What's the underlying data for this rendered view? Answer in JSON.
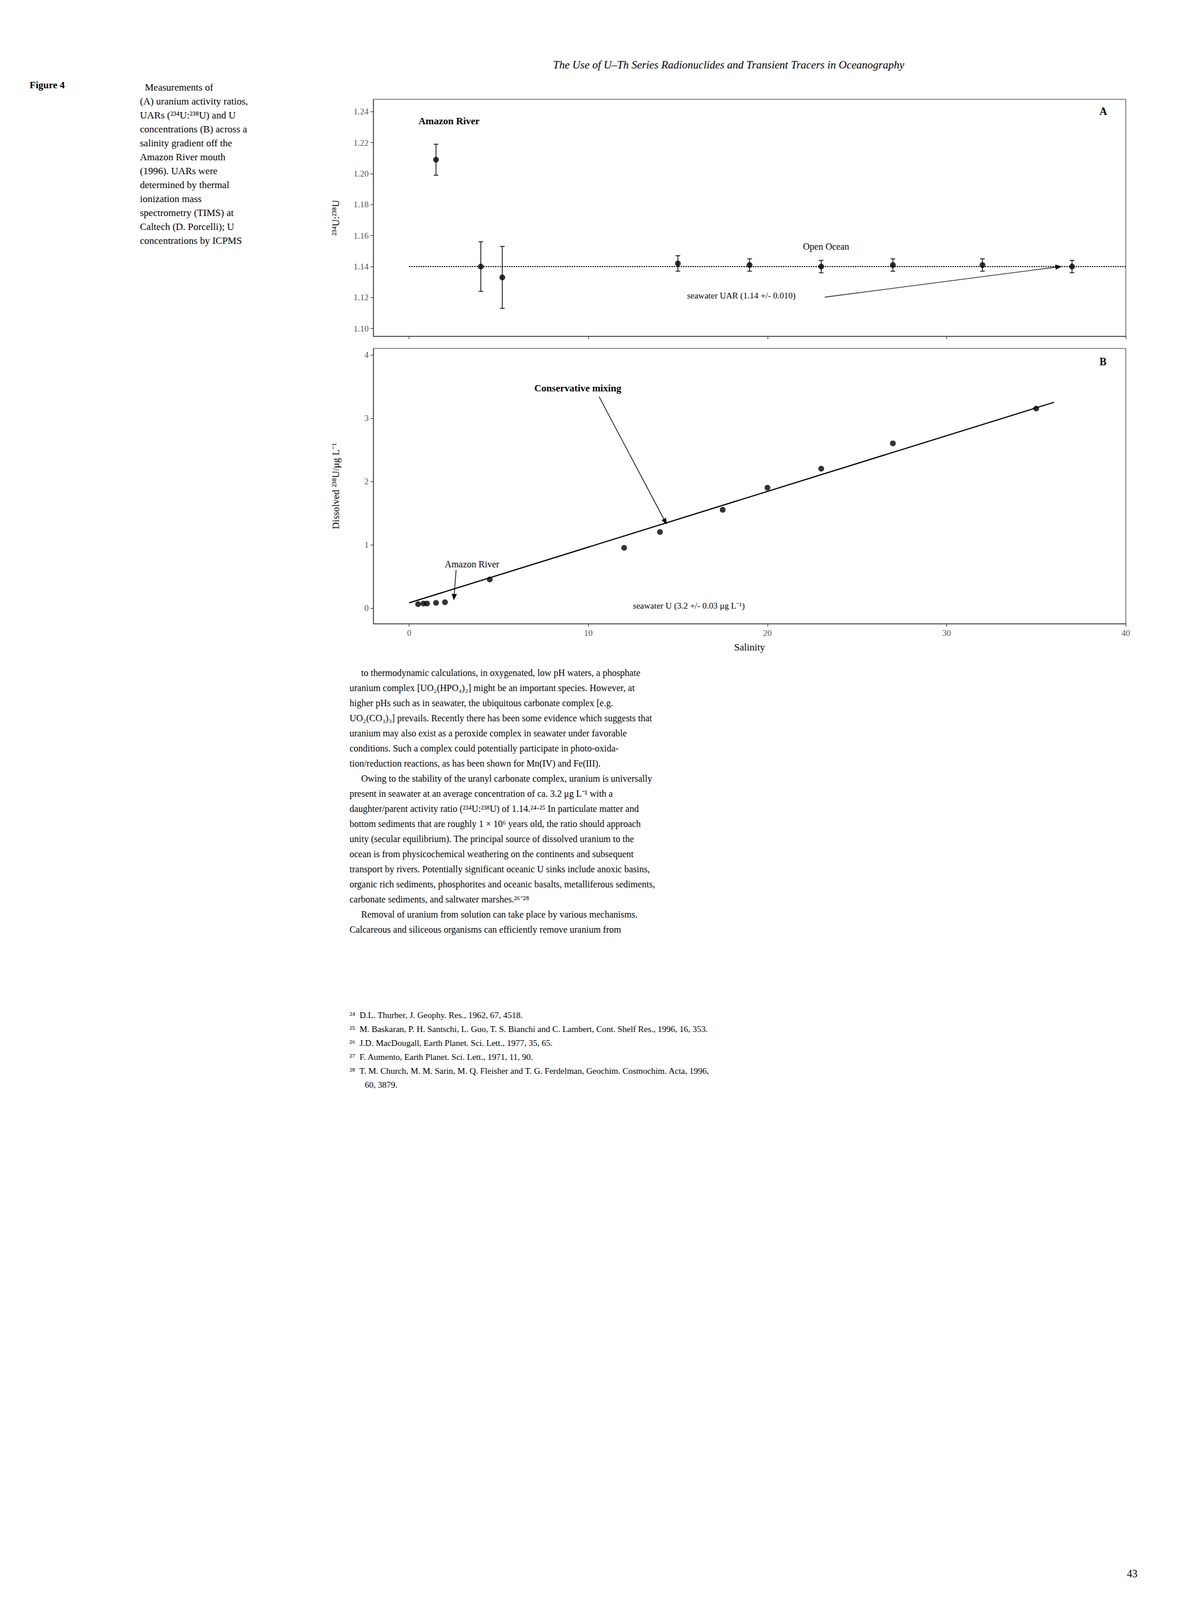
{
  "title": "The Use of U–Th Series Radionuclides and Transient Tracers in Oceanography",
  "page_number": "43",
  "caption_bold": "Figure 4",
  "caption": "  Measurements of\n(A) uranium activity ratios,\nUARs (²³⁴U:²³⁸U) and U\nconcentrations (B) across a\nsalinity gradient off the\nAmazon River mouth\n(1996). UARs were\ndetermined by thermal\nionization mass\nspectrometry (TIMS) at\nCaltech (D. Porcelli); U\nconcentrations by ICPMS",
  "body_text": [
    "     to thermodynamic calculations, in oxygenated, low pH waters, a phosphate",
    "uranium complex [UO₂(HPO₄)₂] might be an important species. However, at",
    "higher pHs such as in seawater, the ubiquitous carbonate complex [e.g.",
    "UO₂(CO₃)₃] prevails. Recently there has been some evidence which suggests that",
    "uranium may also exist as a peroxide complex in seawater under favorable",
    "conditions. Such a complex could potentially participate in photo-oxida-",
    "tion/reduction reactions, as has been shown for Mn(IV) and Fe(III).",
    "     Owing to the stability of the uranyl carbonate complex, uranium is universally",
    "present in seawater at an average concentration of ca. 3.2 μg L⁻¹ with a",
    "daughter/parent activity ratio (²³⁴U:²³⁸U) of 1.14.²⁴⋅²⁵ In particulate matter and",
    "bottom sediments that are roughly 1 × 10⁶ years old, the ratio should approach",
    "unity (secular equilibrium). The principal source of dissolved uranium to the",
    "ocean is from physicochemical weathering on the continents and subsequent",
    "transport by rivers. Potentially significant oceanic U sinks include anoxic basins,",
    "organic rich sediments, phosphorites and oceanic basalts, metalliferous sediments,",
    "carbonate sediments, and saltwater marshes.²⁶⁻²⁸",
    "     Removal of uranium from solution can take place by various mechanisms.",
    "Calcareous and siliceous organisms can efficiently remove uranium from"
  ],
  "footnotes": [
    "²⁴  D.L. Thurber, J. Geophy. Res., 1962, 67, 4518.",
    "²⁵  M. Baskaran, P. H. Santschi, L. Guo, T. S. Bianchi and C. Lambert, Cont. Shelf Res., 1996, 16, 353.",
    "²⁶  J.D. MacDougall, Earth Planet. Sci. Lett., 1977, 35, 65.",
    "²⁷  F. Aumento, Earth Planet. Sci. Lett., 1971, 11, 90.",
    "²⁸  T. M. Church, M. M. Sarin, M. Q. Fleisher and T. G. Ferdelman, Geochim. Cosmochim. Acta, 1996,",
    "       60, 3879."
  ],
  "chart_data": [
    {
      "type": "scatter",
      "label": "A",
      "ylabel": "²³⁴U:²³⁸U",
      "xlim": [
        -2,
        40
      ],
      "ylim": [
        1.095,
        1.248
      ],
      "xticks": [
        0,
        10,
        20,
        30,
        40
      ],
      "yticks": [
        {
          "value": 1.1,
          "label": "1.10"
        },
        1.12,
        1.14,
        1.16,
        1.18,
        {
          "value": 1.2,
          "label": "1.20"
        },
        1.22,
        1.24
      ],
      "tick_labels": "y",
      "grid": false,
      "series": [
        {
          "type": "line",
          "line_style": "dotted",
          "color": "#000000",
          "x": [
            0,
            40
          ],
          "values": [
            1.14,
            1.14
          ]
        },
        {
          "type": "scatter",
          "marker": "circle",
          "color": "#000000",
          "x": [
            1.5,
            4.0,
            5.2
          ],
          "values": [
            1.209,
            1.14,
            1.133
          ],
          "error": [
            0.01,
            0.016,
            0.02
          ]
        },
        {
          "type": "scatter",
          "marker": "circle",
          "color": "#000000",
          "x": [
            15,
            19,
            23,
            27,
            32,
            37
          ],
          "values": [
            1.142,
            1.141,
            1.14,
            1.141,
            1.141,
            1.14
          ],
          "error": [
            0.005,
            0.004,
            0.004,
            0.004,
            0.004,
            0.004
          ]
        }
      ],
      "amazon_label": "Amazon River",
      "open_ocean_label": "Open Ocean",
      "seawater_label": "seawater UAR (1.14 +/- 0.010)"
    },
    {
      "type": "scatter",
      "label": "B",
      "xlabel": "Salinity",
      "ylabel": "Dissolved ²³⁸U/μg L⁻¹",
      "xlim": [
        -2,
        40
      ],
      "ylim": [
        -0.25,
        4.1
      ],
      "xticks": [
        0,
        10,
        20,
        30,
        40
      ],
      "yticks": [
        0,
        1,
        2,
        3,
        4
      ],
      "grid": false,
      "series": [
        {
          "type": "line",
          "line_style": "solid",
          "color": "#000000",
          "x": [
            0.0,
            36.0
          ],
          "values": [
            0.08,
            3.25
          ]
        },
        {
          "type": "scatter",
          "marker": "circle",
          "color": "#000000",
          "x": [
            0.5,
            0.8,
            1.0,
            1.5,
            2.0,
            4.5,
            12.0,
            14.0,
            17.5,
            20.0,
            23.0,
            27.0,
            35.0
          ],
          "values": [
            0.06,
            0.07,
            0.07,
            0.08,
            0.09,
            0.45,
            0.95,
            1.2,
            1.55,
            1.9,
            2.2,
            2.6,
            3.15
          ]
        }
      ],
      "conservative_label": "Conservative mixing",
      "amazon_label": "Amazon River",
      "seawater_label": "seawater U (3.2 +/- 0.03 μg L⁻¹)"
    }
  ]
}
